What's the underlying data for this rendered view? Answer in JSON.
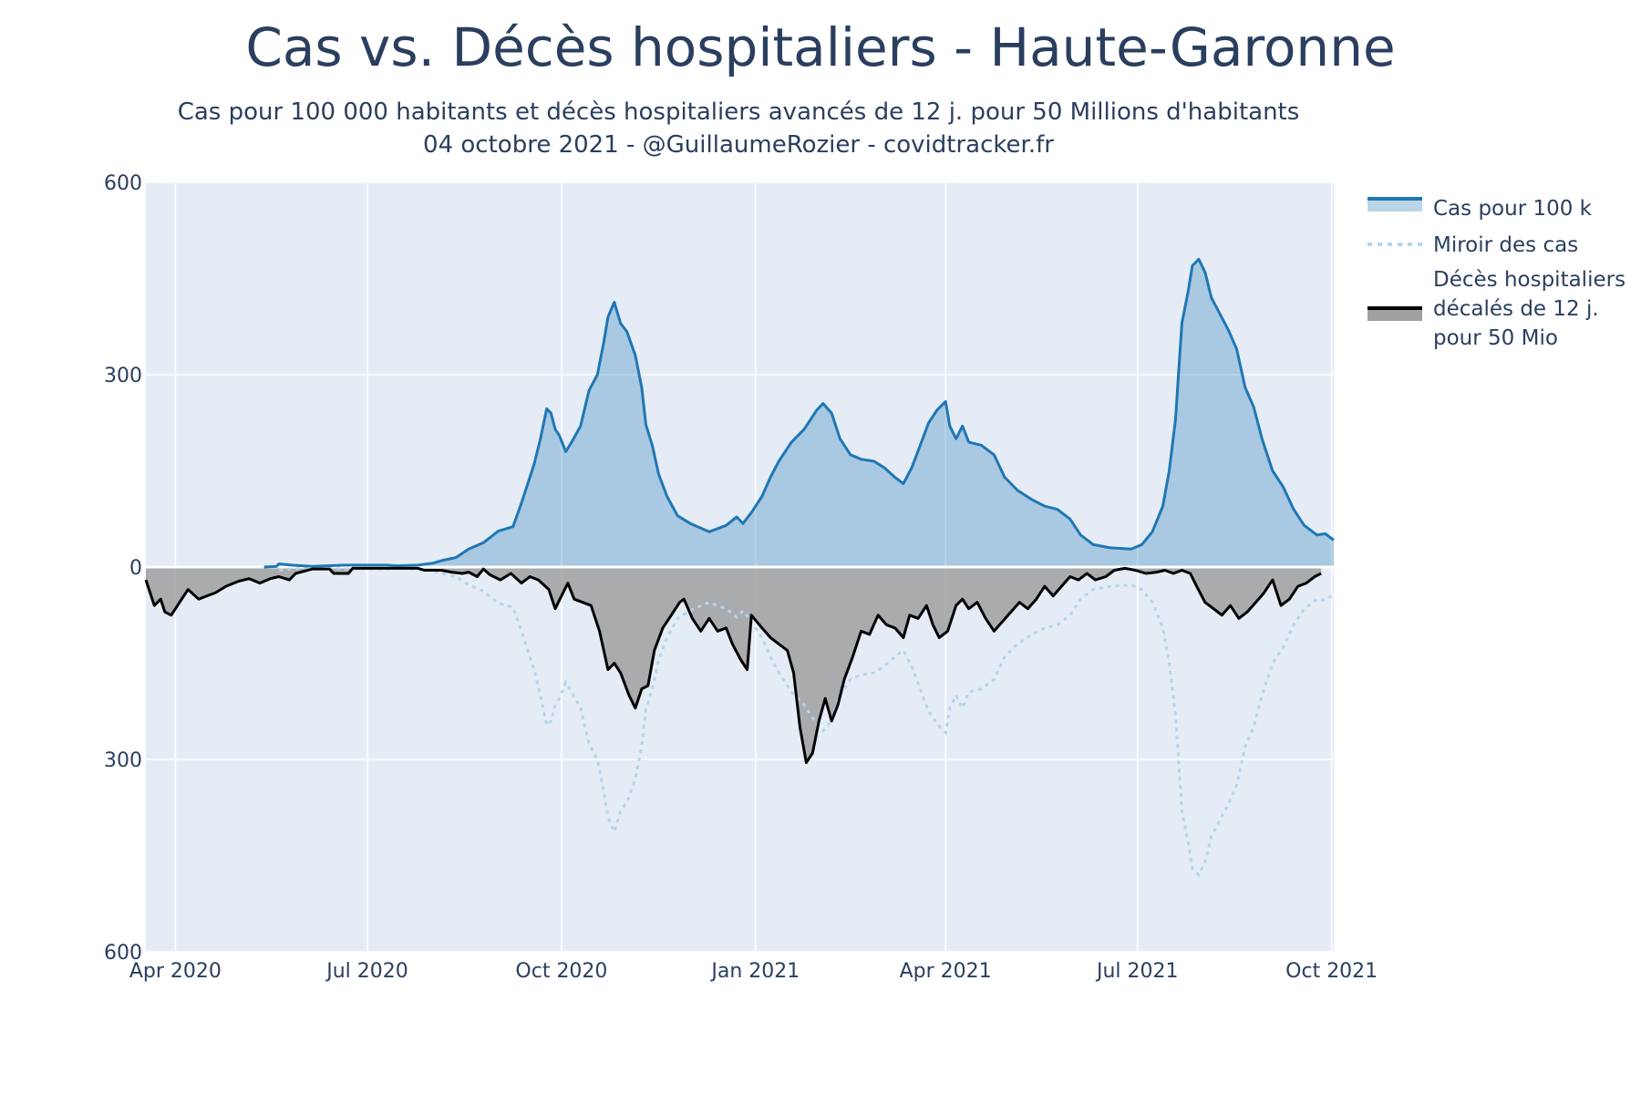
{
  "title": "Cas vs. Décès hospitaliers - Haute-Garonne",
  "subtitle_line1": "Cas pour 100 000 habitants et décès hospitaliers avancés de 12 j. pour 50 Millions d'habitants",
  "subtitle_line2": "04 octobre 2021 - @GuillaumeRozier - covidtracker.fr",
  "colors": {
    "plot_bg": "#e5ecf6",
    "cases_line": "#1f77b4",
    "cases_fill": "rgba(31,119,180,0.30)",
    "mirror_line": "#b6d4ea",
    "deaths_line": "#000000",
    "deaths_fill": "#a0a0a0"
  },
  "chart_data": {
    "type": "area",
    "x_axis": {
      "type": "date",
      "range": [
        "2020-03-18",
        "2021-10-02"
      ],
      "ticks": [
        {
          "date": "2020-04-01",
          "label": "Apr 2020"
        },
        {
          "date": "2020-07-01",
          "label": "Jul 2020"
        },
        {
          "date": "2020-10-01",
          "label": "Oct 2020"
        },
        {
          "date": "2021-01-01",
          "label": "Jan 2021"
        },
        {
          "date": "2021-04-01",
          "label": "Apr 2021"
        },
        {
          "date": "2021-07-01",
          "label": "Jul 2021"
        },
        {
          "date": "2021-10-01",
          "label": "Oct 2021"
        }
      ]
    },
    "y_axis": {
      "range": [
        -600,
        600
      ],
      "ticks": [
        {
          "value": 600,
          "label": "600"
        },
        {
          "value": 300,
          "label": "300"
        },
        {
          "value": 0,
          "label": "0"
        },
        {
          "value": -300,
          "label": "300"
        },
        {
          "value": -600,
          "label": "600"
        }
      ]
    },
    "grid": true,
    "legend": {
      "position": "right",
      "entries": [
        {
          "key": "cases",
          "label_lines": [
            "Cas pour 100 k"
          ]
        },
        {
          "key": "mirror",
          "label_lines": [
            "Miroir des cas"
          ]
        },
        {
          "key": "deaths",
          "label_lines": [
            "Décès hospitaliers",
            "décalés de 12 j.",
            "pour 50 Mio"
          ]
        }
      ]
    },
    "series": [
      {
        "name": "Cas pour 100 k",
        "key": "cases",
        "style": "line-fill-to-zero",
        "points": [
          [
            "2020-05-13",
            0
          ],
          [
            "2020-05-19",
            1
          ],
          [
            "2020-05-20",
            5
          ],
          [
            "2020-05-26",
            3
          ],
          [
            "2020-06-05",
            1
          ],
          [
            "2020-06-20",
            3
          ],
          [
            "2020-07-10",
            3
          ],
          [
            "2020-07-15",
            2
          ],
          [
            "2020-07-25",
            3
          ],
          [
            "2020-08-01",
            6
          ],
          [
            "2020-08-05",
            10
          ],
          [
            "2020-08-12",
            15
          ],
          [
            "2020-08-18",
            28
          ],
          [
            "2020-08-25",
            38
          ],
          [
            "2020-09-01",
            56
          ],
          [
            "2020-09-08",
            63
          ],
          [
            "2020-09-12",
            100
          ],
          [
            "2020-09-18",
            160
          ],
          [
            "2020-09-21",
            200
          ],
          [
            "2020-09-24",
            247
          ],
          [
            "2020-09-26",
            240
          ],
          [
            "2020-09-28",
            215
          ],
          [
            "2020-09-30",
            205
          ],
          [
            "2020-10-03",
            180
          ],
          [
            "2020-10-06",
            196
          ],
          [
            "2020-10-10",
            220
          ],
          [
            "2020-10-14",
            275
          ],
          [
            "2020-10-18",
            300
          ],
          [
            "2020-10-21",
            350
          ],
          [
            "2020-10-23",
            390
          ],
          [
            "2020-10-26",
            413
          ],
          [
            "2020-10-29",
            380
          ],
          [
            "2020-11-01",
            367
          ],
          [
            "2020-11-05",
            330
          ],
          [
            "2020-11-08",
            280
          ],
          [
            "2020-11-10",
            222
          ],
          [
            "2020-11-13",
            190
          ],
          [
            "2020-11-16",
            145
          ],
          [
            "2020-11-20",
            110
          ],
          [
            "2020-11-25",
            80
          ],
          [
            "2020-12-01",
            68
          ],
          [
            "2020-12-10",
            55
          ],
          [
            "2020-12-18",
            65
          ],
          [
            "2020-12-23",
            78
          ],
          [
            "2020-12-26",
            68
          ],
          [
            "2020-12-30",
            85
          ],
          [
            "2021-01-04",
            110
          ],
          [
            "2021-01-08",
            140
          ],
          [
            "2021-01-12",
            165
          ],
          [
            "2021-01-18",
            195
          ],
          [
            "2021-01-24",
            215
          ],
          [
            "2021-01-30",
            245
          ],
          [
            "2021-02-02",
            255
          ],
          [
            "2021-02-06",
            240
          ],
          [
            "2021-02-10",
            200
          ],
          [
            "2021-02-15",
            175
          ],
          [
            "2021-02-20",
            168
          ],
          [
            "2021-02-26",
            165
          ],
          [
            "2021-03-03",
            155
          ],
          [
            "2021-03-08",
            140
          ],
          [
            "2021-03-12",
            130
          ],
          [
            "2021-03-16",
            155
          ],
          [
            "2021-03-20",
            190
          ],
          [
            "2021-03-24",
            225
          ],
          [
            "2021-03-28",
            245
          ],
          [
            "2021-04-01",
            258
          ],
          [
            "2021-04-03",
            220
          ],
          [
            "2021-04-06",
            200
          ],
          [
            "2021-04-09",
            220
          ],
          [
            "2021-04-12",
            195
          ],
          [
            "2021-04-18",
            190
          ],
          [
            "2021-04-24",
            175
          ],
          [
            "2021-04-29",
            140
          ],
          [
            "2021-05-05",
            120
          ],
          [
            "2021-05-12",
            105
          ],
          [
            "2021-05-18",
            95
          ],
          [
            "2021-05-24",
            90
          ],
          [
            "2021-05-30",
            75
          ],
          [
            "2021-06-04",
            50
          ],
          [
            "2021-06-10",
            35
          ],
          [
            "2021-06-18",
            30
          ],
          [
            "2021-06-28",
            28
          ],
          [
            "2021-07-03",
            35
          ],
          [
            "2021-07-08",
            55
          ],
          [
            "2021-07-13",
            95
          ],
          [
            "2021-07-16",
            150
          ],
          [
            "2021-07-19",
            230
          ],
          [
            "2021-07-22",
            380
          ],
          [
            "2021-07-25",
            430
          ],
          [
            "2021-07-27",
            470
          ],
          [
            "2021-07-30",
            480
          ],
          [
            "2021-08-02",
            460
          ],
          [
            "2021-08-05",
            420
          ],
          [
            "2021-08-09",
            395
          ],
          [
            "2021-08-13",
            370
          ],
          [
            "2021-08-17",
            340
          ],
          [
            "2021-08-21",
            280
          ],
          [
            "2021-08-25",
            250
          ],
          [
            "2021-08-29",
            200
          ],
          [
            "2021-09-03",
            150
          ],
          [
            "2021-09-08",
            125
          ],
          [
            "2021-09-13",
            90
          ],
          [
            "2021-09-18",
            65
          ],
          [
            "2021-09-24",
            50
          ],
          [
            "2021-09-28",
            52
          ],
          [
            "2021-10-02",
            42
          ]
        ]
      },
      {
        "name": "Miroir des cas",
        "key": "mirror",
        "style": "dotted-line",
        "mirror_of": "cases"
      },
      {
        "name": "Décès hospitaliers décalés de 12 j. pour 50 Mio",
        "key": "deaths",
        "style": "line-fill-to-zero",
        "points": [
          [
            "2020-03-18",
            -20
          ],
          [
            "2020-03-20",
            -40
          ],
          [
            "2020-03-22",
            -60
          ],
          [
            "2020-03-25",
            -50
          ],
          [
            "2020-03-27",
            -70
          ],
          [
            "2020-03-30",
            -75
          ],
          [
            "2020-04-03",
            -55
          ],
          [
            "2020-04-07",
            -35
          ],
          [
            "2020-04-12",
            -50
          ],
          [
            "2020-04-16",
            -45
          ],
          [
            "2020-04-20",
            -40
          ],
          [
            "2020-04-25",
            -30
          ],
          [
            "2020-05-01",
            -22
          ],
          [
            "2020-05-06",
            -18
          ],
          [
            "2020-05-11",
            -25
          ],
          [
            "2020-05-16",
            -18
          ],
          [
            "2020-05-20",
            -15
          ],
          [
            "2020-05-25",
            -20
          ],
          [
            "2020-05-28",
            -10
          ],
          [
            "2020-06-05",
            -3
          ],
          [
            "2020-06-13",
            -3
          ],
          [
            "2020-06-15",
            -10
          ],
          [
            "2020-06-22",
            -10
          ],
          [
            "2020-06-24",
            -2
          ],
          [
            "2020-07-05",
            -2
          ],
          [
            "2020-07-25",
            -2
          ],
          [
            "2020-07-28",
            -5
          ],
          [
            "2020-08-05",
            -5
          ],
          [
            "2020-08-10",
            -8
          ],
          [
            "2020-08-15",
            -10
          ],
          [
            "2020-08-18",
            -8
          ],
          [
            "2020-08-22",
            -15
          ],
          [
            "2020-08-25",
            -3
          ],
          [
            "2020-08-28",
            -12
          ],
          [
            "2020-09-02",
            -20
          ],
          [
            "2020-09-07",
            -10
          ],
          [
            "2020-09-12",
            -25
          ],
          [
            "2020-09-16",
            -15
          ],
          [
            "2020-09-20",
            -20
          ],
          [
            "2020-09-25",
            -35
          ],
          [
            "2020-09-28",
            -65
          ],
          [
            "2020-10-01",
            -45
          ],
          [
            "2020-10-04",
            -25
          ],
          [
            "2020-10-07",
            -50
          ],
          [
            "2020-10-11",
            -55
          ],
          [
            "2020-10-15",
            -60
          ],
          [
            "2020-10-19",
            -100
          ],
          [
            "2020-10-23",
            -160
          ],
          [
            "2020-10-26",
            -150
          ],
          [
            "2020-10-29",
            -165
          ],
          [
            "2020-11-02",
            -200
          ],
          [
            "2020-11-05",
            -220
          ],
          [
            "2020-11-08",
            -190
          ],
          [
            "2020-11-11",
            -185
          ],
          [
            "2020-11-14",
            -130
          ],
          [
            "2020-11-18",
            -95
          ],
          [
            "2020-11-22",
            -75
          ],
          [
            "2020-11-26",
            -55
          ],
          [
            "2020-11-28",
            -50
          ],
          [
            "2020-12-02",
            -80
          ],
          [
            "2020-12-06",
            -100
          ],
          [
            "2020-12-10",
            -80
          ],
          [
            "2020-12-14",
            -100
          ],
          [
            "2020-12-18",
            -95
          ],
          [
            "2020-12-21",
            -120
          ],
          [
            "2020-12-25",
            -145
          ],
          [
            "2020-12-28",
            -160
          ],
          [
            "2020-12-30",
            -75
          ],
          [
            "2021-01-04",
            -95
          ],
          [
            "2021-01-08",
            -110
          ],
          [
            "2021-01-12",
            -120
          ],
          [
            "2021-01-16",
            -130
          ],
          [
            "2021-01-19",
            -165
          ],
          [
            "2021-01-22",
            -250
          ],
          [
            "2021-01-25",
            -305
          ],
          [
            "2021-01-28",
            -290
          ],
          [
            "2021-01-31",
            -240
          ],
          [
            "2021-02-03",
            -205
          ],
          [
            "2021-02-06",
            -240
          ],
          [
            "2021-02-09",
            -215
          ],
          [
            "2021-02-12",
            -175
          ],
          [
            "2021-02-16",
            -140
          ],
          [
            "2021-02-20",
            -100
          ],
          [
            "2021-02-24",
            -105
          ],
          [
            "2021-02-28",
            -75
          ],
          [
            "2021-03-04",
            -90
          ],
          [
            "2021-03-08",
            -95
          ],
          [
            "2021-03-12",
            -110
          ],
          [
            "2021-03-15",
            -75
          ],
          [
            "2021-03-19",
            -80
          ],
          [
            "2021-03-23",
            -60
          ],
          [
            "2021-03-26",
            -90
          ],
          [
            "2021-03-29",
            -110
          ],
          [
            "2021-04-02",
            -100
          ],
          [
            "2021-04-06",
            -60
          ],
          [
            "2021-04-09",
            -50
          ],
          [
            "2021-04-12",
            -65
          ],
          [
            "2021-04-16",
            -55
          ],
          [
            "2021-04-20",
            -80
          ],
          [
            "2021-04-24",
            -100
          ],
          [
            "2021-04-28",
            -85
          ],
          [
            "2021-05-02",
            -70
          ],
          [
            "2021-05-06",
            -55
          ],
          [
            "2021-05-10",
            -65
          ],
          [
            "2021-05-14",
            -50
          ],
          [
            "2021-05-18",
            -30
          ],
          [
            "2021-05-22",
            -45
          ],
          [
            "2021-05-26",
            -30
          ],
          [
            "2021-05-30",
            -15
          ],
          [
            "2021-06-03",
            -20
          ],
          [
            "2021-06-07",
            -10
          ],
          [
            "2021-06-11",
            -20
          ],
          [
            "2021-06-16",
            -15
          ],
          [
            "2021-06-20",
            -5
          ],
          [
            "2021-06-25",
            -2
          ],
          [
            "2021-06-30",
            -5
          ],
          [
            "2021-07-05",
            -10
          ],
          [
            "2021-07-10",
            -8
          ],
          [
            "2021-07-14",
            -5
          ],
          [
            "2021-07-18",
            -10
          ],
          [
            "2021-07-22",
            -5
          ],
          [
            "2021-07-26",
            -10
          ],
          [
            "2021-07-29",
            -30
          ],
          [
            "2021-08-02",
            -55
          ],
          [
            "2021-08-06",
            -65
          ],
          [
            "2021-08-10",
            -75
          ],
          [
            "2021-08-14",
            -60
          ],
          [
            "2021-08-18",
            -80
          ],
          [
            "2021-08-22",
            -70
          ],
          [
            "2021-08-26",
            -55
          ],
          [
            "2021-08-30",
            -40
          ],
          [
            "2021-09-03",
            -20
          ],
          [
            "2021-09-07",
            -60
          ],
          [
            "2021-09-11",
            -50
          ],
          [
            "2021-09-15",
            -30
          ],
          [
            "2021-09-19",
            -25
          ],
          [
            "2021-09-23",
            -15
          ],
          [
            "2021-09-26",
            -10
          ]
        ]
      }
    ]
  }
}
